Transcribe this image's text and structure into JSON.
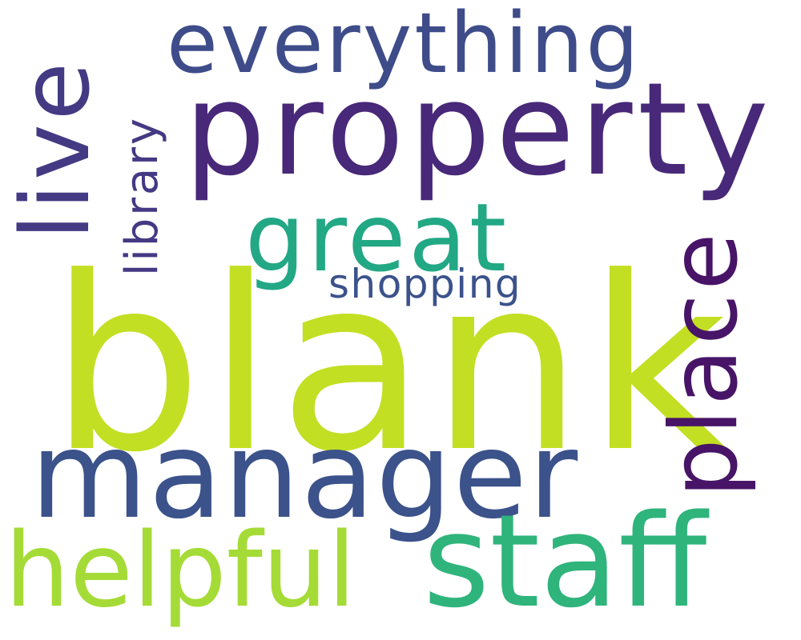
{
  "cloud": {
    "words": {
      "blank": {
        "text": "blank",
        "color": "#c2df23"
      },
      "manager": {
        "text": "manager",
        "color": "#3b528b"
      },
      "property": {
        "text": "property",
        "color": "#482878"
      },
      "staff": {
        "text": "staff",
        "color": "#2fb47c"
      },
      "helpful": {
        "text": "helpful",
        "color": "#a5db36"
      },
      "great": {
        "text": "great",
        "color": "#22a884"
      },
      "everything": {
        "text": "everything",
        "color": "#3e4c8a"
      },
      "live": {
        "text": "live",
        "color": "#443a83"
      },
      "library": {
        "text": "library",
        "color": "#443983"
      },
      "place": {
        "text": "place",
        "color": "#481467"
      },
      "shopping": {
        "text": "shopping",
        "color": "#3b528b"
      }
    }
  }
}
